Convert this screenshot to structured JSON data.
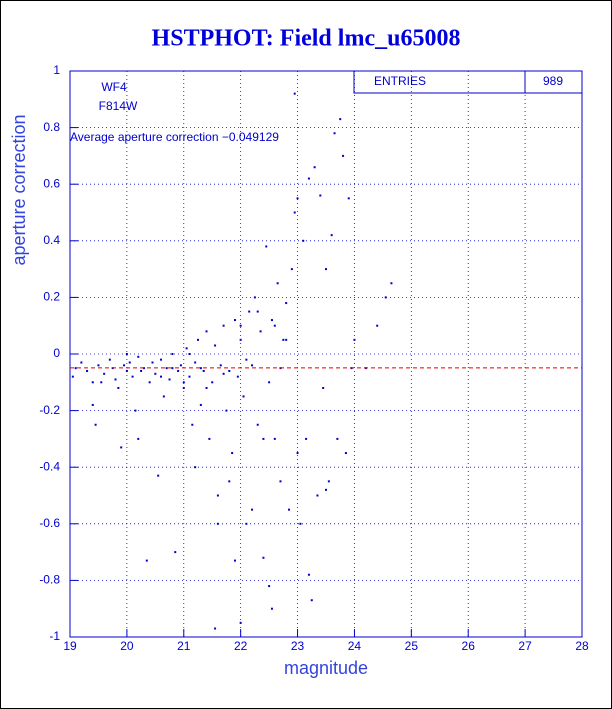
{
  "chart_data": {
    "type": "scatter",
    "title": "HSTPHOT: Field lmc_u65008",
    "x_label": "magnitude",
    "y_label": "aperture correction",
    "annotations": [
      "WF4",
      "F814W",
      "Average aperture correction −0.049129"
    ],
    "mean_line": -0.049129,
    "mean_color": "#dd0000",
    "stats": {
      "label": "ENTRIES",
      "value": 989
    },
    "color": "#0000cc",
    "grid": true,
    "xlim": [
      19,
      28
    ],
    "xticks": [
      19,
      20,
      21,
      22,
      23,
      24,
      25,
      26,
      27,
      28
    ],
    "ylim": [
      -1,
      1
    ],
    "yticks": [
      -1,
      -0.8,
      -0.6,
      -0.4,
      -0.2,
      0,
      0.2,
      0.4,
      0.6,
      0.8,
      1
    ],
    "x": [
      19.05,
      19.1,
      19.2,
      19.3,
      19.4,
      19.45,
      19.5,
      19.6,
      19.7,
      19.75,
      19.8,
      19.85,
      19.9,
      19.95,
      20.0,
      20.05,
      20.1,
      20.15,
      20.2,
      20.25,
      20.3,
      20.35,
      20.4,
      20.45,
      20.5,
      20.55,
      20.6,
      20.65,
      20.7,
      20.75,
      20.8,
      20.85,
      20.9,
      20.95,
      21.0,
      21.05,
      21.1,
      21.15,
      21.2,
      21.25,
      21.3,
      21.35,
      21.4,
      21.45,
      21.5,
      21.55,
      21.6,
      21.65,
      21.7,
      21.75,
      21.8,
      21.85,
      21.9,
      21.95,
      22.0,
      22.05,
      22.1,
      22.15,
      22.2,
      22.25,
      22.3,
      22.35,
      22.4,
      22.45,
      22.5,
      22.55,
      22.6,
      22.65,
      22.7,
      22.75,
      22.8,
      22.85,
      22.9,
      22.95,
      23.0,
      23.05,
      23.1,
      23.15,
      23.2,
      23.25,
      23.3,
      23.35,
      23.4,
      23.45,
      23.5,
      23.55,
      23.6,
      23.65,
      23.7,
      23.75,
      23.8,
      23.85,
      23.9,
      23.95,
      24.0,
      24.2,
      24.4,
      24.55,
      24.65,
      22.95,
      22.0,
      21.55,
      22.55,
      19.4,
      19.55,
      20.2,
      20.8,
      21.0,
      21.3,
      21.7,
      22.1,
      22.7,
      21.2,
      21.8,
      22.2,
      22.5,
      21.9,
      20.0,
      20.6,
      21.1,
      21.4,
      22.0,
      22.3,
      22.6,
      22.8,
      23.0,
      23.2,
      23.5,
      21.6,
      22.4
    ],
    "y": [
      -0.08,
      -0.05,
      -0.03,
      -0.06,
      -0.1,
      -0.25,
      -0.04,
      -0.07,
      -0.02,
      -0.05,
      -0.09,
      -0.12,
      -0.33,
      -0.04,
      -0.06,
      -0.03,
      -0.08,
      -0.2,
      -0.01,
      -0.06,
      -0.05,
      -0.73,
      -0.1,
      -0.03,
      -0.07,
      -0.43,
      -0.02,
      -0.15,
      -0.05,
      -0.09,
      0.0,
      -0.7,
      -0.06,
      -0.04,
      -0.12,
      0.02,
      -0.08,
      -0.25,
      -0.03,
      0.05,
      -0.18,
      -0.06,
      0.08,
      -0.3,
      -0.1,
      0.03,
      -0.5,
      -0.04,
      0.1,
      -0.2,
      -0.06,
      -0.35,
      0.12,
      -0.08,
      0.05,
      -0.15,
      -0.6,
      0.15,
      -0.04,
      0.2,
      -0.25,
      0.08,
      -0.72,
      0.38,
      -0.1,
      0.12,
      -0.3,
      0.25,
      -0.45,
      0.05,
      0.18,
      -0.55,
      0.3,
      0.5,
      0.55,
      -0.6,
      0.4,
      -0.3,
      0.62,
      -0.87,
      0.66,
      -0.5,
      0.56,
      -0.12,
      0.3,
      -0.45,
      0.42,
      0.78,
      -0.3,
      0.83,
      0.7,
      -0.35,
      0.55,
      -0.05,
      0.05,
      -0.05,
      0.1,
      0.2,
      0.25,
      0.92,
      -0.95,
      -0.97,
      -0.9,
      -0.18,
      -0.1,
      -0.3,
      -0.05,
      -0.1,
      -0.05,
      -0.07,
      -0.02,
      -0.05,
      -0.4,
      -0.45,
      -0.55,
      -0.82,
      -0.73,
      0.0,
      -0.08,
      0.0,
      -0.12,
      0.1,
      0.15,
      0.1,
      0.05,
      -0.35,
      -0.78,
      -0.48,
      -0.6,
      -0.3
    ]
  }
}
